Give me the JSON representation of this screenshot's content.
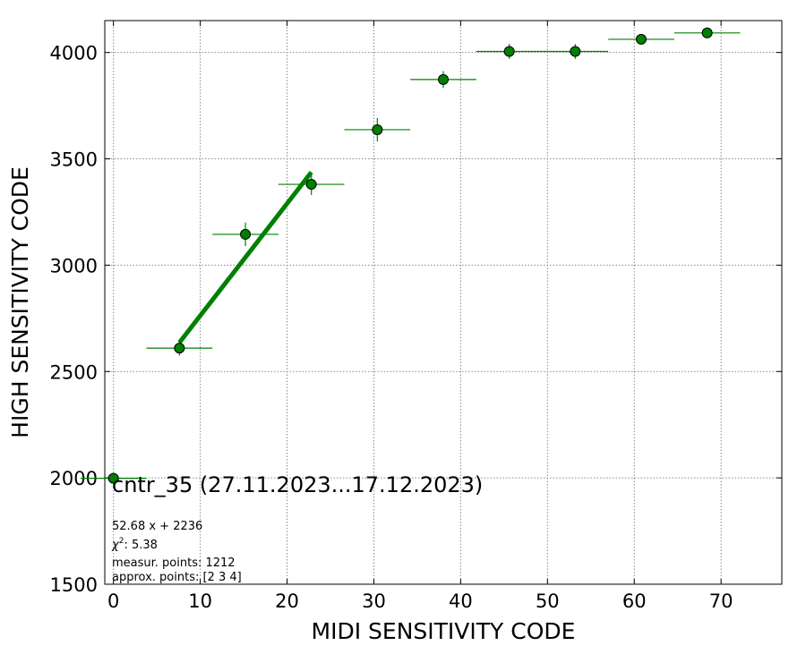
{
  "chart_data": {
    "type": "scatter",
    "title": "",
    "xlabel": "MIDI SENSITIVITY CODE",
    "ylabel": "HIGH SENSITIVITY CODE",
    "xlim": [
      -1,
      77
    ],
    "ylim": [
      1500,
      4150
    ],
    "x_ticks": [
      0,
      10,
      20,
      30,
      40,
      50,
      60,
      70
    ],
    "y_ticks": [
      1500,
      2000,
      2500,
      3000,
      3500,
      4000
    ],
    "grid": true,
    "series": [
      {
        "color": "#008000",
        "points": [
          {
            "x": 0.0,
            "y": 1998,
            "xerr": 3.8,
            "yerr": 12
          },
          {
            "x": 7.6,
            "y": 2610,
            "xerr": 3.8,
            "yerr": 35
          },
          {
            "x": 15.2,
            "y": 3145,
            "xerr": 3.8,
            "yerr": 55
          },
          {
            "x": 22.8,
            "y": 3380,
            "xerr": 3.8,
            "yerr": 50
          },
          {
            "x": 30.4,
            "y": 3637,
            "xerr": 3.8,
            "yerr": 55
          },
          {
            "x": 38.0,
            "y": 3873,
            "xerr": 3.8,
            "yerr": 40
          },
          {
            "x": 45.6,
            "y": 4005,
            "xerr": 3.8,
            "yerr": 35
          },
          {
            "x": 53.2,
            "y": 4005,
            "xerr": 3.8,
            "yerr": 35
          },
          {
            "x": 60.8,
            "y": 4062,
            "xerr": 3.8,
            "yerr": 15
          },
          {
            "x": 68.4,
            "y": 4092,
            "xerr": 3.8,
            "yerr": 10
          }
        ]
      }
    ],
    "fit_line": {
      "slope": 52.68,
      "intercept": 2236,
      "x_range": [
        7.6,
        22.8
      ],
      "color": "#008000"
    },
    "annotation": "cntr_35 (27.11.2023...17.12.2023)",
    "stats": {
      "equation": "52.68 x + 2236",
      "chi2_prefix": "χ",
      "chi2_sup": "2",
      "chi2_value": ": 5.38",
      "measur_points": "measur. points: 1212",
      "approx_points": "approx. points: [2 3 4]"
    }
  }
}
